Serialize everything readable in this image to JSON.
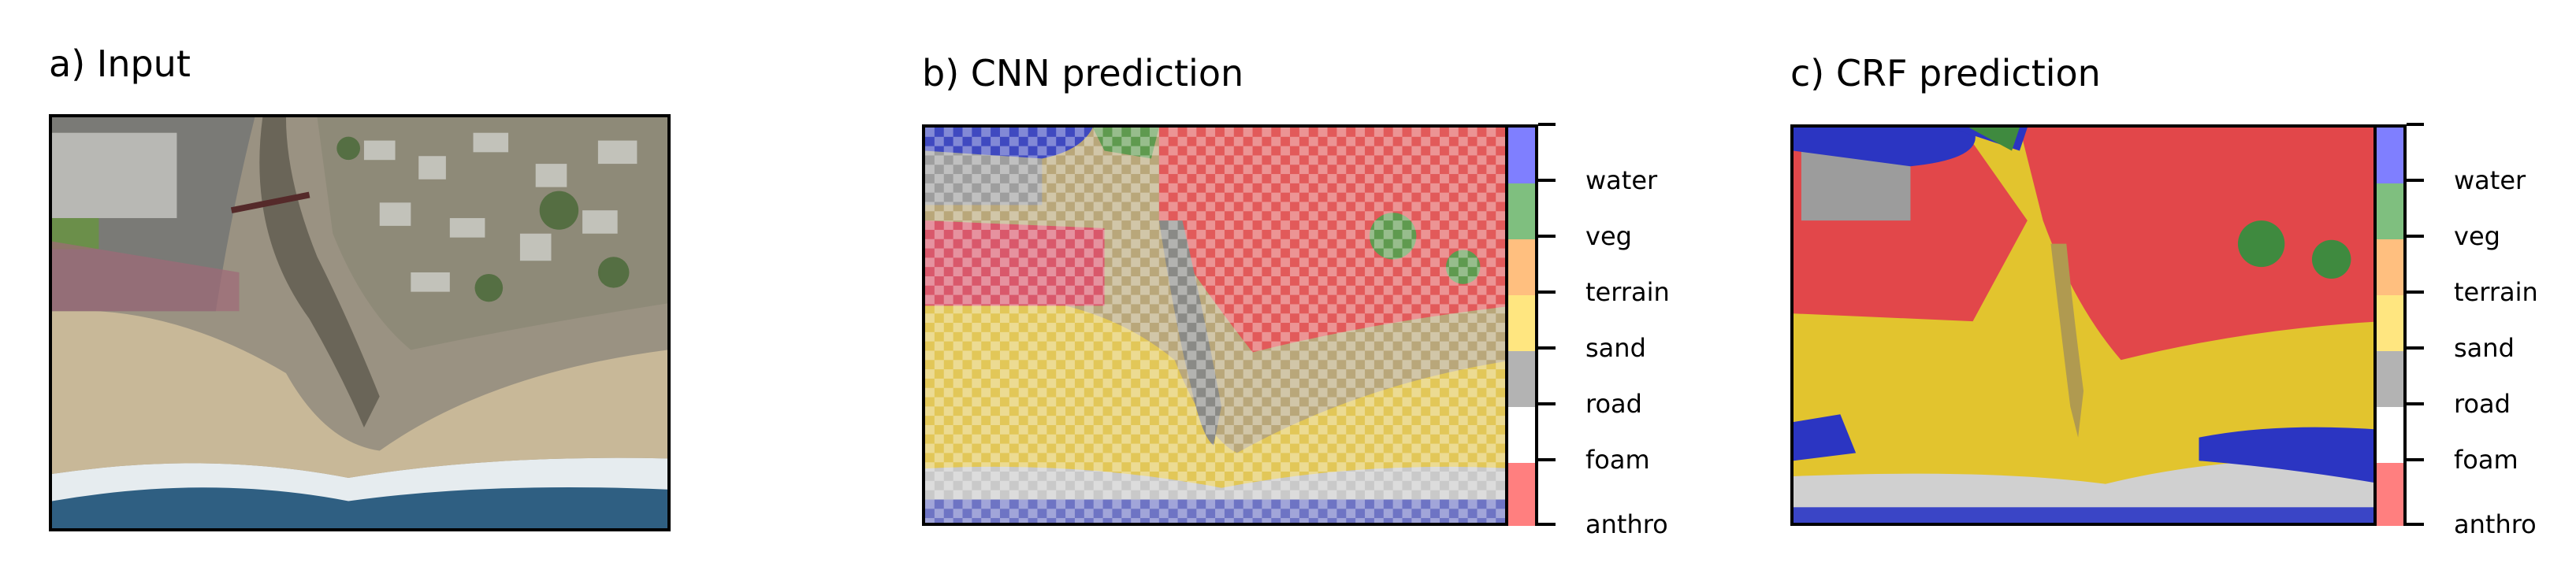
{
  "panels": [
    {
      "title": "a) Input"
    },
    {
      "title": "b) CNN prediction"
    },
    {
      "title": "c) CRF prediction"
    }
  ],
  "legend": {
    "classes": [
      "water",
      "veg",
      "terrain",
      "sand",
      "road",
      "foam",
      "anthro"
    ],
    "colors": [
      "#7f7fff",
      "#7fbf7f",
      "#ffbf7f",
      "#ffe680",
      "#b3b3b3",
      "#ffffff",
      "#ff7f7f"
    ]
  }
}
